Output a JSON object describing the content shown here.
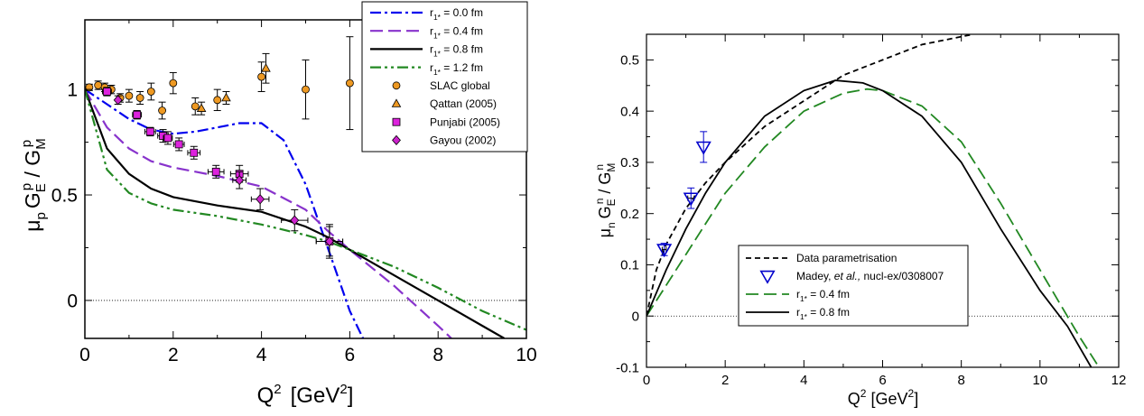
{
  "chart_data": [
    {
      "type": "line",
      "ylabel_parts": {
        "mu": "μ",
        "mu_sub": "p",
        "ge": "G",
        "ge_sub": "E",
        "ge_sup": "p",
        "slash": " / G",
        "gm_sub": "M",
        "gm_sup": "p"
      },
      "xlabel_parts": {
        "q": "Q",
        "q_sup": "2",
        "unit": "[GeV",
        "unit_sup": "2",
        "close": "]"
      },
      "xlim": [
        0,
        10
      ],
      "ylim": [
        -0.18,
        1.33
      ],
      "xticks": [
        0,
        2,
        4,
        6,
        8,
        10
      ],
      "yticks": [
        0,
        0.5,
        1
      ],
      "xticklabels": [
        "0",
        "2",
        "4",
        "6",
        "8",
        "10"
      ],
      "yticklabels": [
        "0",
        "0.5",
        "1"
      ],
      "reference_line": 0,
      "legend_position": "top-right",
      "series": [
        {
          "label": "r1* = 0.0 fm",
          "label_parts": [
            "r",
            "1*",
            " = 0.0 fm"
          ],
          "color": "#0000ee",
          "dash": "dashdot",
          "x": [
            0,
            0.5,
            1,
            1.5,
            2,
            2.5,
            3,
            3.5,
            4,
            4.5,
            5,
            5.5,
            6,
            6.3
          ],
          "y": [
            1.0,
            0.93,
            0.86,
            0.81,
            0.79,
            0.8,
            0.82,
            0.84,
            0.84,
            0.76,
            0.55,
            0.25,
            -0.05,
            -0.18
          ]
        },
        {
          "label": "r1* = 0.4 fm",
          "label_parts": [
            "r",
            "1*",
            " = 0.4 fm"
          ],
          "color": "#8833cc",
          "dash": "dash",
          "x": [
            0,
            0.5,
            1,
            1.5,
            2,
            3,
            4,
            5,
            5.5,
            6,
            7,
            8,
            8.3
          ],
          "y": [
            1.0,
            0.82,
            0.72,
            0.66,
            0.63,
            0.59,
            0.54,
            0.43,
            0.33,
            0.24,
            0.07,
            -0.12,
            -0.18
          ]
        },
        {
          "label": "r1* = 0.8 fm",
          "label_parts": [
            "r",
            "1*",
            " = 0.8 fm"
          ],
          "color": "#000000",
          "dash": "solid",
          "x": [
            0,
            0.5,
            1,
            1.5,
            2,
            3,
            4,
            5,
            5.5,
            6,
            7,
            8,
            9,
            9.5
          ],
          "y": [
            1.0,
            0.72,
            0.6,
            0.53,
            0.49,
            0.45,
            0.42,
            0.35,
            0.3,
            0.24,
            0.12,
            0.0,
            -0.12,
            -0.18
          ]
        },
        {
          "label": "r1* = 1.2 fm",
          "label_parts": [
            "r",
            "1*",
            " = 1.2 fm"
          ],
          "color": "#228822",
          "dash": "dashdotdot",
          "x": [
            0,
            0.5,
            1,
            1.5,
            2,
            3,
            4,
            5,
            5.5,
            6,
            7,
            8,
            9,
            10
          ],
          "y": [
            1.0,
            0.62,
            0.51,
            0.46,
            0.43,
            0.4,
            0.36,
            0.31,
            0.28,
            0.24,
            0.16,
            0.06,
            -0.05,
            -0.14
          ]
        }
      ],
      "scatter": [
        {
          "label": "SLAC global",
          "marker": "circle",
          "color": "#ee9922",
          "points": [
            [
              0.1,
              1.01,
              0,
              0.015
            ],
            [
              0.3,
              1.02,
              0,
              0.02
            ],
            [
              0.45,
              1.01,
              0,
              0.02
            ],
            [
              0.6,
              1.0,
              0,
              0.02
            ],
            [
              0.8,
              0.96,
              0,
              0.02
            ],
            [
              1.0,
              0.97,
              0,
              0.03
            ],
            [
              1.25,
              0.96,
              0,
              0.03
            ],
            [
              1.5,
              0.99,
              0,
              0.04
            ],
            [
              1.75,
              0.9,
              0,
              0.04
            ],
            [
              2.0,
              1.03,
              0,
              0.05
            ],
            [
              2.5,
              0.92,
              0,
              0.04
            ],
            [
              3.0,
              0.95,
              0,
              0.05
            ],
            [
              4.0,
              1.06,
              0,
              0.07
            ],
            [
              5.0,
              1.0,
              0,
              0.14
            ],
            [
              6.0,
              1.03,
              0,
              0.22
            ]
          ]
        },
        {
          "label": "Qattan (2005)",
          "marker": "triangle",
          "color": "#ee9922",
          "points": [
            [
              2.64,
              0.91,
              0,
              0.03
            ],
            [
              3.2,
              0.96,
              0,
              0.03
            ],
            [
              4.1,
              1.1,
              0,
              0.07
            ]
          ]
        },
        {
          "label": "Punjabi (2005)",
          "marker": "square",
          "color": "#dd22dd",
          "points": [
            [
              0.5,
              0.99,
              0.1,
              0.02
            ],
            [
              1.18,
              0.88,
              0.1,
              0.02
            ],
            [
              1.48,
              0.8,
              0.12,
              0.02
            ],
            [
              1.77,
              0.78,
              0.12,
              0.03
            ],
            [
              1.88,
              0.77,
              0.1,
              0.03
            ],
            [
              2.13,
              0.74,
              0.12,
              0.03
            ],
            [
              2.47,
              0.7,
              0.14,
              0.03
            ],
            [
              2.97,
              0.61,
              0.18,
              0.03
            ],
            [
              3.5,
              0.6,
              0.2,
              0.04
            ],
            [
              5.54,
              0.28,
              0.3,
              0.08
            ]
          ]
        },
        {
          "label": "Gayou (2002)",
          "marker": "diamond",
          "color": "#cc22cc",
          "points": [
            [
              0.75,
              0.95,
              0,
              0.02
            ],
            [
              3.5,
              0.57,
              0.15,
              0.04
            ],
            [
              3.97,
              0.48,
              0.2,
              0.05
            ],
            [
              4.75,
              0.38,
              0.3,
              0.05
            ],
            [
              5.54,
              0.28,
              0.3,
              0.07
            ]
          ]
        }
      ]
    },
    {
      "type": "line",
      "ylabel_parts": {
        "mu": "μ",
        "mu_sub": "n",
        "ge": "G",
        "ge_sub": "E",
        "ge_sup": "n",
        "slash": " / G",
        "gm_sub": "M",
        "gm_sup": "n"
      },
      "xlabel_parts": {
        "q": "Q",
        "q_sup": "2",
        "unit": "[GeV",
        "unit_sup": "2",
        "close": "]"
      },
      "xlim": [
        0,
        12
      ],
      "ylim": [
        -0.1,
        0.55
      ],
      "xticks": [
        0,
        2,
        4,
        6,
        8,
        10,
        12
      ],
      "yticks": [
        -0.1,
        0,
        0.1,
        0.2,
        0.3,
        0.4,
        0.5
      ],
      "xticklabels": [
        "0",
        "2",
        "4",
        "6",
        "8",
        "10",
        "12"
      ],
      "yticklabels": [
        "-0.1",
        "0",
        "0.1",
        "0.2",
        "0.3",
        "0.4",
        "0.5"
      ],
      "reference_line": 0,
      "legend_position": "center",
      "series": [
        {
          "label": "Data parametrisation",
          "label_parts": [
            "Data parametrisation",
            "",
            ""
          ],
          "color": "#000000",
          "dash": "shortdash",
          "x": [
            0,
            0.25,
            0.5,
            1,
            1.5,
            2,
            3,
            4,
            5,
            6,
            7,
            8.3
          ],
          "y": [
            0.0,
            0.09,
            0.14,
            0.21,
            0.26,
            0.3,
            0.37,
            0.42,
            0.47,
            0.5,
            0.53,
            0.55
          ]
        },
        {
          "label": "Madey, et al., nucl-ex/0308007",
          "marker": "triangle-down",
          "color": "#0000cc",
          "points": [
            [
              0.45,
              0.13,
              0.05,
              0.012
            ],
            [
              1.13,
              0.23,
              0.08,
              0.02
            ],
            [
              1.45,
              0.33,
              0,
              0.03
            ]
          ]
        },
        {
          "label": "r1* = 0.4 fm",
          "label_parts": [
            "r",
            "1*",
            " = 0.4 fm"
          ],
          "color": "#228822",
          "dash": "dash",
          "x": [
            0,
            0.5,
            1,
            1.5,
            2,
            3,
            4,
            5,
            5.6,
            6,
            7,
            8,
            9,
            10,
            11,
            11.5
          ],
          "y": [
            0.0,
            0.06,
            0.12,
            0.18,
            0.24,
            0.33,
            0.4,
            0.435,
            0.443,
            0.44,
            0.41,
            0.34,
            0.22,
            0.09,
            -0.04,
            -0.1
          ]
        },
        {
          "label": "r1* = 0.8 fm",
          "label_parts": [
            "r",
            "1*",
            " = 0.8 fm"
          ],
          "color": "#000000",
          "dash": "solid",
          "x": [
            0,
            0.5,
            1,
            1.5,
            2,
            3,
            4,
            4.8,
            5.5,
            6,
            7,
            8,
            9,
            10,
            10.7,
            11.3
          ],
          "y": [
            0.0,
            0.09,
            0.17,
            0.24,
            0.3,
            0.39,
            0.44,
            0.46,
            0.455,
            0.44,
            0.39,
            0.3,
            0.17,
            0.05,
            -0.02,
            -0.1
          ]
        }
      ]
    }
  ]
}
